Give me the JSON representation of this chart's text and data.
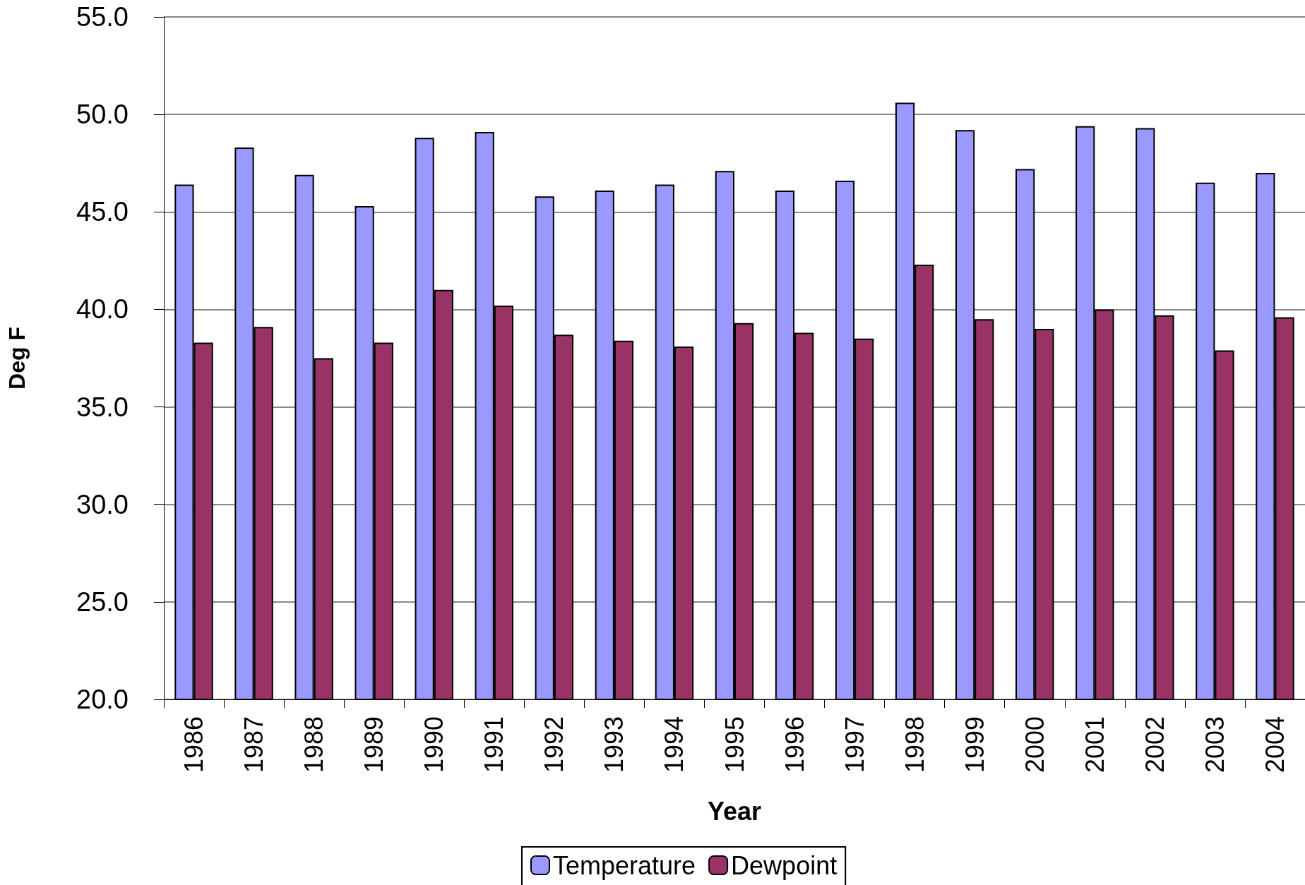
{
  "chart_data": {
    "type": "bar",
    "xlabel": "Year",
    "ylabel": "Deg F",
    "categories": [
      "1986",
      "1987",
      "1988",
      "1989",
      "1990",
      "1991",
      "1992",
      "1993",
      "1994",
      "1995",
      "1996",
      "1997",
      "1998",
      "1999",
      "2000",
      "2001",
      "2002",
      "2003",
      "2004"
    ],
    "series": [
      {
        "name": "Temperature",
        "color": "#9999ff",
        "values": [
          46.4,
          48.3,
          46.9,
          45.3,
          48.8,
          49.1,
          45.8,
          46.1,
          46.4,
          47.1,
          46.1,
          46.6,
          50.6,
          49.2,
          47.2,
          49.4,
          49.3,
          46.5,
          47.0
        ]
      },
      {
        "name": "Dewpoint",
        "color": "#993366",
        "values": [
          38.3,
          39.1,
          37.5,
          38.3,
          41.0,
          40.2,
          38.7,
          38.4,
          38.1,
          39.3,
          38.8,
          38.5,
          42.3,
          39.5,
          39.0,
          40.0,
          39.7,
          37.9,
          39.6
        ]
      }
    ],
    "ylim": [
      20,
      55
    ],
    "yticks": [
      {
        "value": 20,
        "label": "20.0"
      },
      {
        "value": 25,
        "label": "25.0"
      },
      {
        "value": 30,
        "label": "30.0"
      },
      {
        "value": 35,
        "label": "35.0"
      },
      {
        "value": 40,
        "label": "40.0"
      },
      {
        "value": 45,
        "label": "45.0"
      },
      {
        "value": 50,
        "label": "50.0"
      },
      {
        "value": 55,
        "label": "55.0"
      }
    ],
    "grid": "y",
    "legend": "bottom"
  }
}
